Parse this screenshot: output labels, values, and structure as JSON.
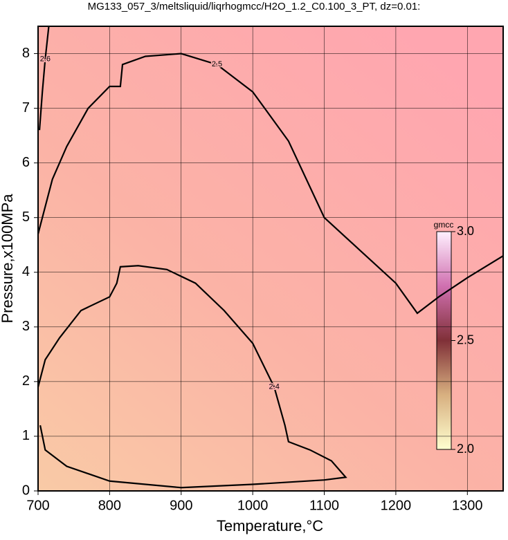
{
  "chart_data": {
    "type": "contour",
    "title": "MG133_057_3/meltsliquid/liqrhogmcc/H2O_1.2_C0.100_3_PT, dz=0.01:",
    "x_label": "Temperature,°C",
    "y_label": "Pressure,x100MPa",
    "xlim": [
      700,
      1350
    ],
    "ylim": [
      0,
      8.5
    ],
    "xticks": [
      700,
      800,
      900,
      1000,
      1100,
      1200,
      1300
    ],
    "yticks": [
      0,
      1,
      2,
      3,
      4,
      5,
      6,
      7,
      8
    ],
    "grid": true,
    "contours": [
      {
        "level": 2.5,
        "x": [
          700,
          720,
          740,
          770,
          800,
          815,
          818,
          850,
          900,
          950,
          1000,
          1050,
          1100,
          1150,
          1200,
          1230,
          1260,
          1300,
          1350
        ],
        "y": [
          4.7,
          5.7,
          6.3,
          7.0,
          7.4,
          7.4,
          7.8,
          7.95,
          8.0,
          7.8,
          7.3,
          6.4,
          5.0,
          4.4,
          3.8,
          3.25,
          3.55,
          3.9,
          4.3
        ]
      },
      {
        "level": 2.4,
        "x": [
          700,
          710,
          730,
          760,
          800,
          810,
          815,
          840,
          880,
          920,
          960,
          1000,
          1030,
          1045,
          1050,
          1080,
          1110,
          1130,
          1100,
          1000,
          900,
          800,
          740,
          710,
          703
        ],
        "y": [
          1.9,
          2.4,
          2.8,
          3.3,
          3.55,
          3.8,
          4.1,
          4.12,
          4.05,
          3.8,
          3.3,
          2.7,
          1.9,
          1.2,
          0.9,
          0.75,
          0.55,
          0.25,
          0.2,
          0.12,
          0.06,
          0.18,
          0.45,
          0.75,
          1.2
        ]
      },
      {
        "level": 2.6,
        "x": [
          702,
          706,
          710,
          715
        ],
        "y": [
          6.6,
          7.3,
          7.9,
          8.5
        ]
      }
    ],
    "colorbar": {
      "label": "gmcc",
      "lim": [
        2.0,
        3.0
      ],
      "ticks": [
        {
          "value": 3.0,
          "label": "3.0"
        },
        {
          "value": 2.5,
          "label": "2.5"
        },
        {
          "value": 2.0,
          "label": "2.0"
        }
      ]
    }
  }
}
